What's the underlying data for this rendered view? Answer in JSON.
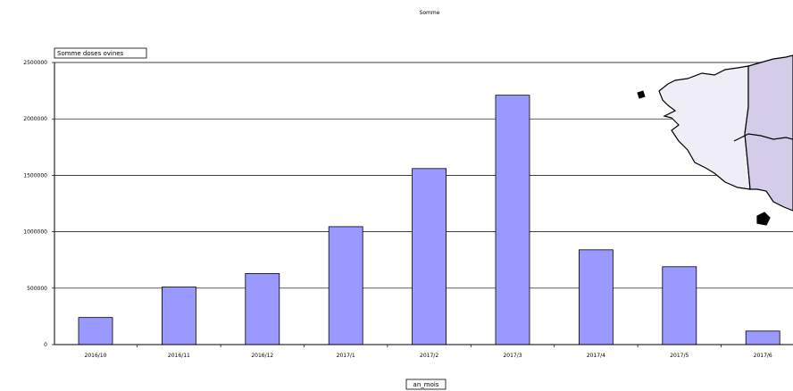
{
  "chart_data": {
    "type": "bar",
    "title": "Somme",
    "legend_label": "Somme doses ovines",
    "xlabel": "an_mois",
    "ylabel": "",
    "categories": [
      "2016/10",
      "2016/11",
      "2016/12",
      "2017/1",
      "2017/2",
      "2017/3",
      "2017/4",
      "2017/5",
      "2017/6"
    ],
    "values": [
      240000,
      510000,
      630000,
      1045000,
      1560000,
      2210000,
      840000,
      690000,
      120000
    ],
    "y_ticks": [
      {
        "value": 0,
        "label": "0"
      },
      {
        "value": 500000,
        "label": "500000"
      },
      {
        "value": 1000000,
        "label": "1000000"
      },
      {
        "value": 1500000,
        "label": "1500000"
      },
      {
        "value": 2000000,
        "label": "2000000"
      },
      {
        "value": 2500000,
        "label": "2500000"
      }
    ],
    "ylim": [
      0,
      2500000
    ],
    "grid": true,
    "bar_color": "#9999ff",
    "map_colors": {
      "west": "#efeef6",
      "east": "#d4cce8"
    }
  }
}
